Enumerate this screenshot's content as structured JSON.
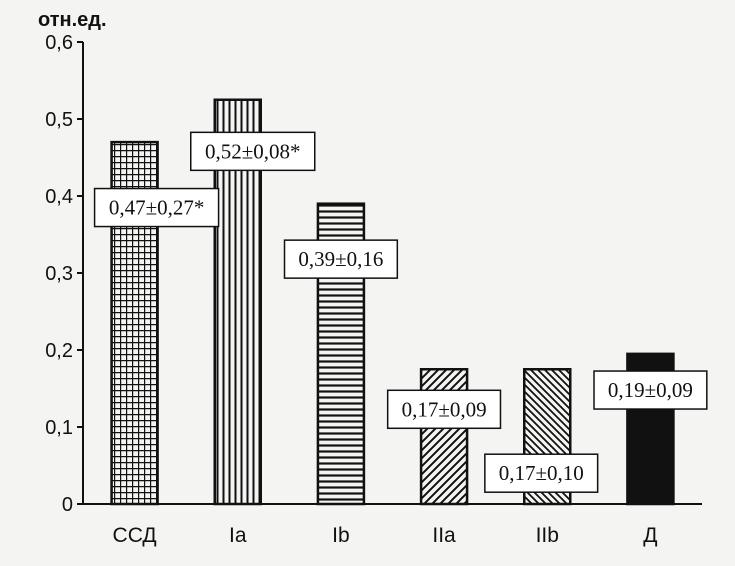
{
  "chart_data": {
    "type": "bar",
    "ylabel": "отн.ед.",
    "xlabel": "",
    "title": "",
    "ylim": [
      0,
      0.6
    ],
    "yticks": [
      "0",
      "0,1",
      "0,2",
      "0,3",
      "0,4",
      "0,5",
      "0,6"
    ],
    "categories": [
      "ССД",
      "Ia",
      "Ib",
      "IIa",
      "IIb",
      "Д"
    ],
    "values": [
      0.47,
      0.525,
      0.39,
      0.175,
      0.175,
      0.195
    ],
    "data_labels": [
      "0,47±0,27*",
      "0,52±0,08*",
      "0,39±0,16",
      "0,17±0,09",
      "0,17±0,10",
      "0,19±0,09"
    ],
    "patterns": [
      "grid",
      "vertical",
      "horizontal",
      "diagonal-up",
      "diagonal-down",
      "solid"
    ],
    "grid": false,
    "legend": "none",
    "bar_color": "#111111",
    "background": "#f4f4f2"
  }
}
